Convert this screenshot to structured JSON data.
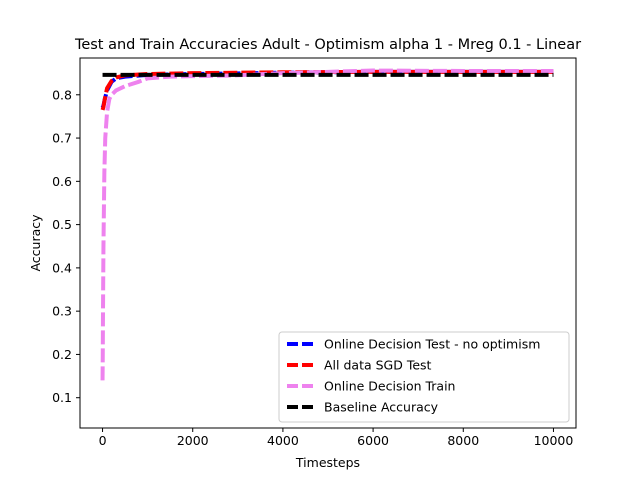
{
  "chart_data": {
    "type": "line",
    "title": "Test and Train Accuracies Adult - Optimism alpha 1 - Mreg 0.1 - Linear",
    "xlabel": "Timesteps",
    "ylabel": "Accuracy",
    "xlim": [
      -500,
      10500
    ],
    "ylim": [
      0.03,
      0.885
    ],
    "xticks": [
      0,
      2000,
      4000,
      6000,
      8000,
      10000
    ],
    "xtick_labels": [
      "0",
      "2000",
      "4000",
      "6000",
      "8000",
      "10000"
    ],
    "yticks": [
      0.1,
      0.2,
      0.3,
      0.4,
      0.5,
      0.6,
      0.7,
      0.8
    ],
    "ytick_labels": [
      "0.1",
      "0.2",
      "0.3",
      "0.4",
      "0.5",
      "0.6",
      "0.7",
      "0.8"
    ],
    "grid": false,
    "legend_position": "lower-right",
    "series": [
      {
        "name": "Online Decision Test - no optimism",
        "color": "#0000ff",
        "style": "dashed",
        "x": [
          0,
          20,
          50,
          100,
          200,
          300,
          500,
          1000,
          2000,
          4000,
          6000,
          8000,
          10000
        ],
        "y": [
          0.77,
          0.775,
          0.79,
          0.81,
          0.83,
          0.838,
          0.842,
          0.846,
          0.848,
          0.851,
          0.853,
          0.853,
          0.853
        ]
      },
      {
        "name": "All data SGD Test",
        "color": "#ff0000",
        "style": "dashed",
        "x": [
          0,
          20,
          50,
          100,
          200,
          300,
          500,
          1000,
          2000,
          4000,
          6000,
          8000,
          10000
        ],
        "y": [
          0.765,
          0.772,
          0.79,
          0.815,
          0.832,
          0.84,
          0.845,
          0.848,
          0.85,
          0.852,
          0.853,
          0.853,
          0.853
        ]
      },
      {
        "name": "Online Decision Train",
        "color": "#ee82ee",
        "style": "dashed",
        "x": [
          0,
          5,
          10,
          20,
          40,
          60,
          100,
          150,
          200,
          300,
          500,
          800,
          1000,
          1500,
          2000,
          3000,
          4000,
          6000,
          8000,
          10000
        ],
        "y": [
          0.14,
          0.2,
          0.3,
          0.45,
          0.62,
          0.7,
          0.76,
          0.79,
          0.8,
          0.81,
          0.82,
          0.83,
          0.838,
          0.842,
          0.843,
          0.845,
          0.85,
          0.856,
          0.855,
          0.855
        ]
      },
      {
        "name": "Baseline Accuracy",
        "color": "#000000",
        "style": "dashed",
        "x": [
          0,
          10000
        ],
        "y": [
          0.846,
          0.846
        ]
      }
    ]
  }
}
